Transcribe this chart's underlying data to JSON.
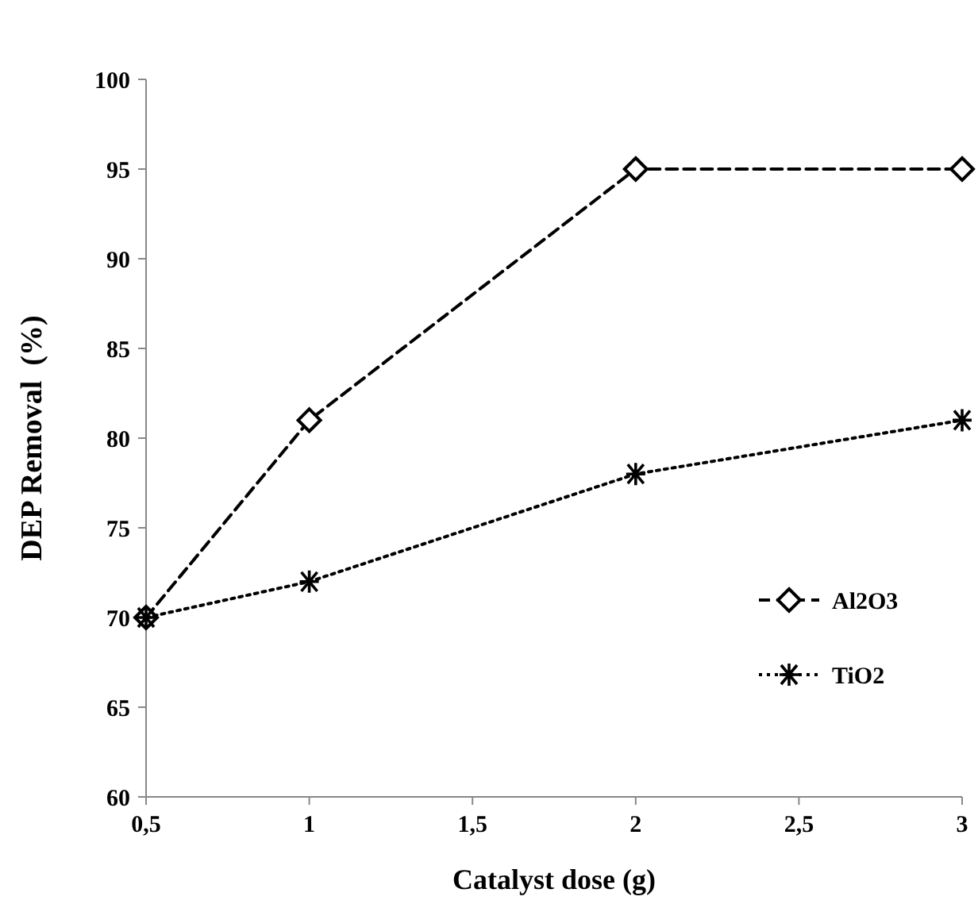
{
  "chart_data": {
    "type": "line",
    "xlabel": "Catalyst dose (g)",
    "ylabel": "DEP Removal  (%)",
    "x": [
      0.5,
      1,
      2,
      3
    ],
    "series": [
      {
        "name": "Al2O3",
        "color": "#000000",
        "values": [
          70,
          81,
          95,
          95
        ],
        "marker": "diamond",
        "line_style": "dashed"
      },
      {
        "name": "TiO2",
        "color": "#000000",
        "values": [
          70,
          72,
          78,
          81
        ],
        "marker": "cross",
        "line_style": "dotted"
      }
    ],
    "xlim": [
      0.5,
      3
    ],
    "xticks": [
      {
        "value": 0.5,
        "label": "0,5"
      },
      1,
      {
        "value": 1.5,
        "label": "1,5"
      },
      2,
      {
        "value": 2.5,
        "label": "2,5"
      },
      3
    ],
    "ylim": [
      60,
      100
    ],
    "yticks": [
      60,
      65,
      70,
      75,
      80,
      85,
      90,
      95,
      100
    ],
    "grid": false,
    "legend": "right"
  }
}
